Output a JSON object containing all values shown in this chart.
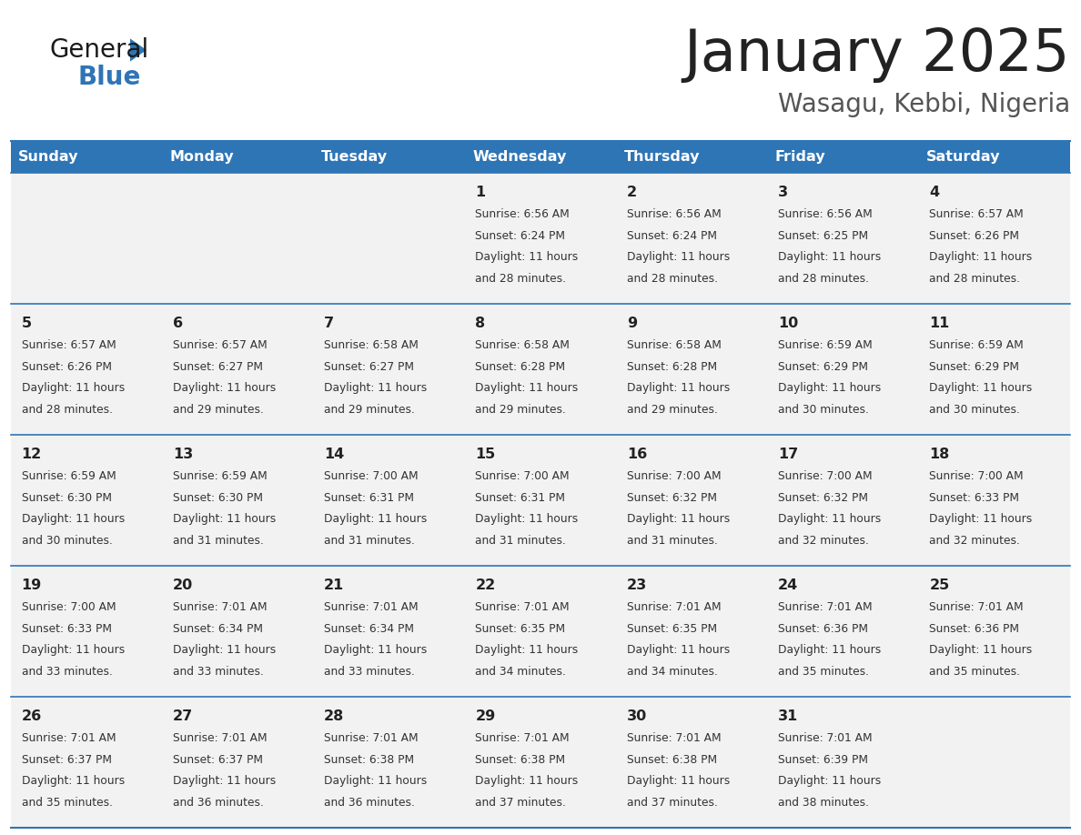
{
  "title": "January 2025",
  "subtitle": "Wasagu, Kebbi, Nigeria",
  "days_of_week": [
    "Sunday",
    "Monday",
    "Tuesday",
    "Wednesday",
    "Thursday",
    "Friday",
    "Saturday"
  ],
  "header_bg": "#2E75B6",
  "header_text": "#FFFFFF",
  "cell_bg": "#F2F2F2",
  "cell_text": "#333333",
  "day_number_color": "#222222",
  "divider_color": "#2E75B6",
  "title_color": "#222222",
  "subtitle_color": "#555555",
  "logo_general_color": "#1a1a1a",
  "logo_blue_color": "#2E75B6",
  "calendar": [
    [
      null,
      null,
      null,
      {
        "day": 1,
        "sunrise": "6:56 AM",
        "sunset": "6:24 PM",
        "daylight": "11 hours and 28 minutes."
      },
      {
        "day": 2,
        "sunrise": "6:56 AM",
        "sunset": "6:24 PM",
        "daylight": "11 hours and 28 minutes."
      },
      {
        "day": 3,
        "sunrise": "6:56 AM",
        "sunset": "6:25 PM",
        "daylight": "11 hours and 28 minutes."
      },
      {
        "day": 4,
        "sunrise": "6:57 AM",
        "sunset": "6:26 PM",
        "daylight": "11 hours and 28 minutes."
      }
    ],
    [
      {
        "day": 5,
        "sunrise": "6:57 AM",
        "sunset": "6:26 PM",
        "daylight": "11 hours and 28 minutes."
      },
      {
        "day": 6,
        "sunrise": "6:57 AM",
        "sunset": "6:27 PM",
        "daylight": "11 hours and 29 minutes."
      },
      {
        "day": 7,
        "sunrise": "6:58 AM",
        "sunset": "6:27 PM",
        "daylight": "11 hours and 29 minutes."
      },
      {
        "day": 8,
        "sunrise": "6:58 AM",
        "sunset": "6:28 PM",
        "daylight": "11 hours and 29 minutes."
      },
      {
        "day": 9,
        "sunrise": "6:58 AM",
        "sunset": "6:28 PM",
        "daylight": "11 hours and 29 minutes."
      },
      {
        "day": 10,
        "sunrise": "6:59 AM",
        "sunset": "6:29 PM",
        "daylight": "11 hours and 30 minutes."
      },
      {
        "day": 11,
        "sunrise": "6:59 AM",
        "sunset": "6:29 PM",
        "daylight": "11 hours and 30 minutes."
      }
    ],
    [
      {
        "day": 12,
        "sunrise": "6:59 AM",
        "sunset": "6:30 PM",
        "daylight": "11 hours and 30 minutes."
      },
      {
        "day": 13,
        "sunrise": "6:59 AM",
        "sunset": "6:30 PM",
        "daylight": "11 hours and 31 minutes."
      },
      {
        "day": 14,
        "sunrise": "7:00 AM",
        "sunset": "6:31 PM",
        "daylight": "11 hours and 31 minutes."
      },
      {
        "day": 15,
        "sunrise": "7:00 AM",
        "sunset": "6:31 PM",
        "daylight": "11 hours and 31 minutes."
      },
      {
        "day": 16,
        "sunrise": "7:00 AM",
        "sunset": "6:32 PM",
        "daylight": "11 hours and 31 minutes."
      },
      {
        "day": 17,
        "sunrise": "7:00 AM",
        "sunset": "6:32 PM",
        "daylight": "11 hours and 32 minutes."
      },
      {
        "day": 18,
        "sunrise": "7:00 AM",
        "sunset": "6:33 PM",
        "daylight": "11 hours and 32 minutes."
      }
    ],
    [
      {
        "day": 19,
        "sunrise": "7:00 AM",
        "sunset": "6:33 PM",
        "daylight": "11 hours and 33 minutes."
      },
      {
        "day": 20,
        "sunrise": "7:01 AM",
        "sunset": "6:34 PM",
        "daylight": "11 hours and 33 minutes."
      },
      {
        "day": 21,
        "sunrise": "7:01 AM",
        "sunset": "6:34 PM",
        "daylight": "11 hours and 33 minutes."
      },
      {
        "day": 22,
        "sunrise": "7:01 AM",
        "sunset": "6:35 PM",
        "daylight": "11 hours and 34 minutes."
      },
      {
        "day": 23,
        "sunrise": "7:01 AM",
        "sunset": "6:35 PM",
        "daylight": "11 hours and 34 minutes."
      },
      {
        "day": 24,
        "sunrise": "7:01 AM",
        "sunset": "6:36 PM",
        "daylight": "11 hours and 35 minutes."
      },
      {
        "day": 25,
        "sunrise": "7:01 AM",
        "sunset": "6:36 PM",
        "daylight": "11 hours and 35 minutes."
      }
    ],
    [
      {
        "day": 26,
        "sunrise": "7:01 AM",
        "sunset": "6:37 PM",
        "daylight": "11 hours and 35 minutes."
      },
      {
        "day": 27,
        "sunrise": "7:01 AM",
        "sunset": "6:37 PM",
        "daylight": "11 hours and 36 minutes."
      },
      {
        "day": 28,
        "sunrise": "7:01 AM",
        "sunset": "6:38 PM",
        "daylight": "11 hours and 36 minutes."
      },
      {
        "day": 29,
        "sunrise": "7:01 AM",
        "sunset": "6:38 PM",
        "daylight": "11 hours and 37 minutes."
      },
      {
        "day": 30,
        "sunrise": "7:01 AM",
        "sunset": "6:38 PM",
        "daylight": "11 hours and 37 minutes."
      },
      {
        "day": 31,
        "sunrise": "7:01 AM",
        "sunset": "6:39 PM",
        "daylight": "11 hours and 38 minutes."
      },
      null
    ]
  ]
}
